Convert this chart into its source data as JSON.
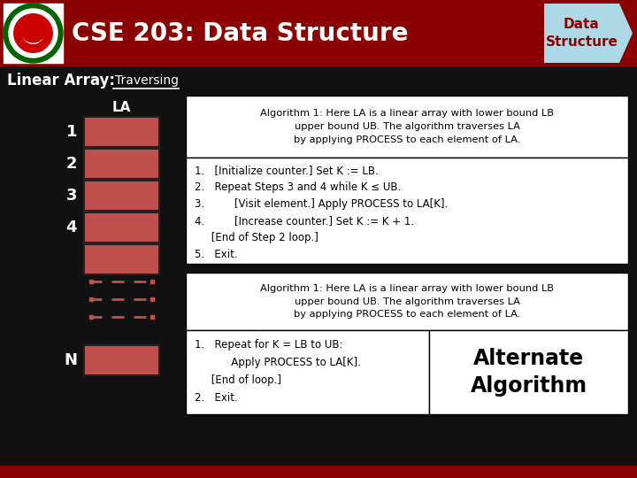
{
  "title": "CSE 203: Data Structure",
  "badge_text": "Data\nStructure",
  "subtitle": "Linear Array:",
  "subtitle2": "Traversing",
  "header_bg": "#8B0000",
  "header_text_color": "#FFFFFF",
  "badge_bg": "#ADD8E6",
  "badge_text_color": "#8B0000",
  "body_bg": "#111111",
  "array_color": "#C0504D",
  "array_label": "LA",
  "array_items": [
    "1",
    "2",
    "3",
    "4"
  ],
  "array_n": "N",
  "box1_title": "Algorithm 1: Here LA is a linear array with lower bound LB\nupper bound UB. The algorithm traverses LA\nby applying PROCESS to each element of LA.",
  "box1_steps": "1.   [Initialize counter.] Set K := LB.\n2.   Repeat Steps 3 and 4 while K ≤ UB.\n3.         [Visit element.] Apply PROCESS to LA[K].\n4.         [Increase counter.] Set K := K + 1.\n     [End of Step 2 loop.]\n5.   Exit.",
  "box2_title": "Algorithm 1: Here LA is a linear array with lower bound LB\nupper bound UB. The algorithm traverses LA\nby applying PROCESS to each element of LA.",
  "box2_steps": "1.   Repeat for K = LB to UB:\n           Apply PROCESS to LA[K].\n     [End of loop.]\n2.   Exit.",
  "alt_algo_text": "Alternate\nAlgorithm",
  "fig_width": 7.2,
  "fig_height": 5.4
}
